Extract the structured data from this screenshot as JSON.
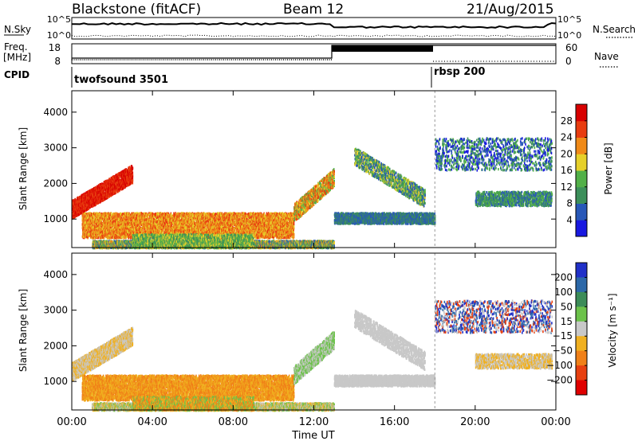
{
  "header": {
    "title": "Blackstone (fitACF)",
    "beam": "Beam 12",
    "date": "21/Aug/2015"
  },
  "panels": {
    "nsky_label": "N.Sky",
    "nsearch_label": "N.Search",
    "nsky_tick_top": "10^5",
    "nsky_tick_bottom": "10^0",
    "freq_label": "Freq.",
    "freq_unit": "[MHz]",
    "freq_ticks": [
      "18",
      "8"
    ],
    "nave_label": "Nave",
    "nave_ticks": [
      "60",
      "0"
    ],
    "cpid_label": "CPID",
    "cpid_modes": [
      {
        "name": "twofsound 3501",
        "start_hour": 0
      },
      {
        "name": "rbsp 200",
        "start_hour": 18
      }
    ]
  },
  "chart_data": [
    {
      "type": "heatmap",
      "name": "power",
      "xlabel": "Time UT",
      "ylabel": "Slant Range [km]",
      "x_range": [
        0,
        24
      ],
      "x_ticks": [
        "00:00",
        "04:00",
        "08:00",
        "12:00",
        "16:00",
        "20:00",
        "00:00"
      ],
      "y_range": [
        200,
        4600
      ],
      "y_ticks": [
        1000,
        2000,
        3000,
        4000
      ],
      "colorbar": {
        "label": "Power [dB]",
        "ticks": [
          "4",
          "8",
          "12",
          "16",
          "20",
          "24",
          "28"
        ],
        "colors": [
          "#1818e0",
          "#2858b8",
          "#3c8f5a",
          "#52b048",
          "#e6d02a",
          "#f08a18",
          "#e83c10",
          "#d80000"
        ]
      }
    },
    {
      "type": "heatmap",
      "name": "velocity",
      "xlabel": "Time UT",
      "ylabel": "Slant Range [km]",
      "x_range": [
        0,
        24
      ],
      "x_ticks": [
        "00:00",
        "04:00",
        "08:00",
        "12:00",
        "16:00",
        "20:00",
        "00:00"
      ],
      "y_range": [
        200,
        4600
      ],
      "y_ticks": [
        1000,
        2000,
        3000,
        4000
      ],
      "colorbar": {
        "label": "Velocity [m s⁻¹]",
        "ticks": [
          "200",
          "100",
          "50",
          "15",
          "−15",
          "−50",
          "−100",
          "−200"
        ],
        "colors": [
          "#2030c8",
          "#2c68a8",
          "#3c8c58",
          "#6cc24a",
          "#c8c8c8",
          "#f0b020",
          "#f08018",
          "#e84010",
          "#e00000"
        ]
      }
    }
  ]
}
